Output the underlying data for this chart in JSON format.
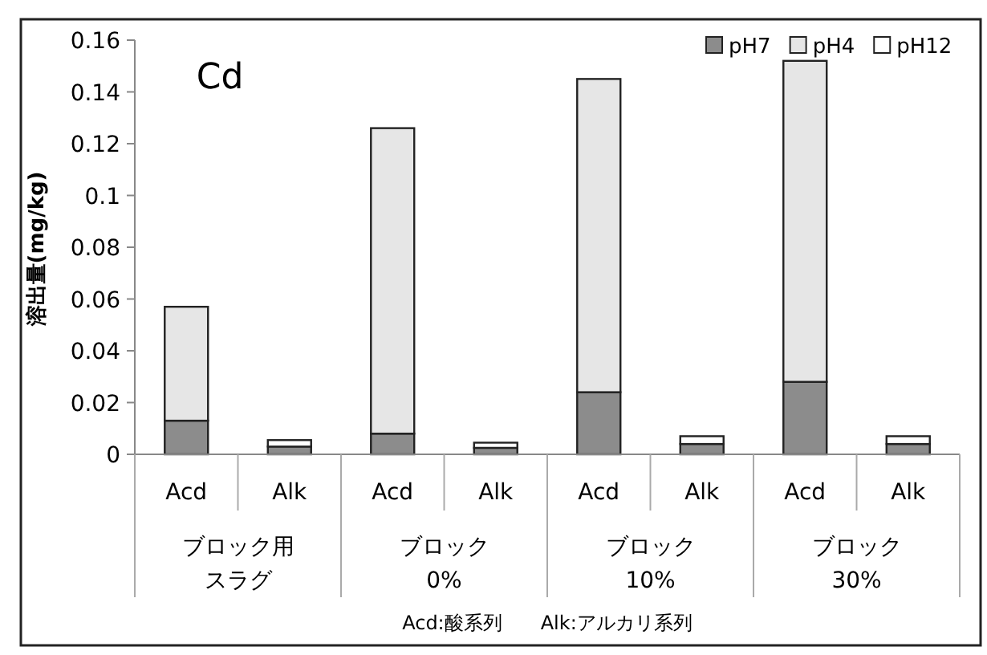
{
  "chart_data": {
    "type": "bar",
    "stacked": true,
    "title": "Cd",
    "ylabel": "溶出量(mg/kg)",
    "categories": [
      "Acd",
      "Alk",
      "Acd",
      "Alk",
      "Acd",
      "Alk",
      "Acd",
      "Alk"
    ],
    "series": [
      {
        "name": "pH7",
        "color": "#8c8c8c",
        "values": [
          0.013,
          0.003,
          0.008,
          0.0025,
          0.024,
          0.004,
          0.028,
          0.004
        ]
      },
      {
        "name": "pH4",
        "color": "#e6e6e6",
        "values": [
          0.044,
          0,
          0.118,
          0,
          0.121,
          0,
          0.124,
          0
        ]
      },
      {
        "name": "pH12",
        "color": "#ffffff",
        "values": [
          0,
          0.0025,
          0,
          0.002,
          0,
          0.003,
          0,
          0.003
        ]
      }
    ],
    "ylim": [
      0,
      0.16
    ],
    "yticks": [
      0,
      0.02,
      0.04,
      0.06,
      0.08,
      0.1,
      0.12,
      0.14,
      0.16
    ],
    "legend": "top right",
    "grid": false,
    "annotations": [
      "ブロック用",
      "スラグ",
      "ブロック",
      "0%",
      "ブロック",
      "10%",
      "ブロック",
      "30%",
      "Acd:酸系列　　Alk:アルカリ系列"
    ]
  }
}
